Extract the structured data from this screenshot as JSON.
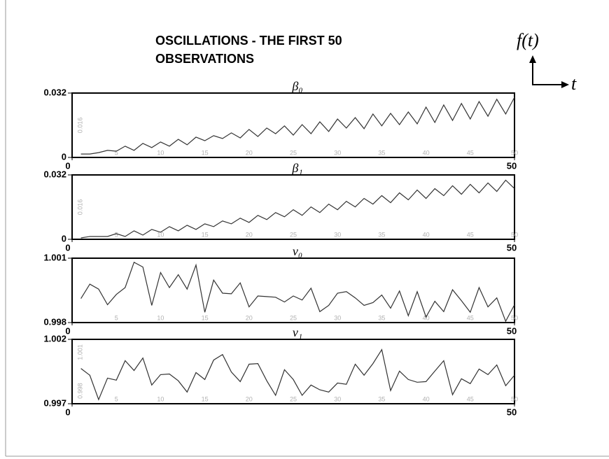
{
  "title_lines": [
    "OSCILLATIONS - THE FIRST 50",
    "OBSERVATIONS"
  ],
  "axis_key": {
    "y_label": "f(t)",
    "x_label": "t"
  },
  "chart_data": [
    {
      "type": "line",
      "title": "β₀",
      "color": "#333333",
      "x": [
        1,
        2,
        3,
        4,
        5,
        6,
        7,
        8,
        9,
        10,
        11,
        12,
        13,
        14,
        15,
        16,
        17,
        18,
        19,
        20,
        21,
        22,
        23,
        24,
        25,
        26,
        27,
        28,
        29,
        30,
        31,
        32,
        33,
        34,
        35,
        36,
        37,
        38,
        39,
        40,
        41,
        42,
        43,
        44,
        45,
        46,
        47,
        48,
        49,
        50
      ],
      "values": [
        0.0017,
        0.0017,
        0.0024,
        0.0035,
        0.0031,
        0.0056,
        0.0035,
        0.007,
        0.0049,
        0.0077,
        0.0056,
        0.009,
        0.0063,
        0.0101,
        0.0083,
        0.0108,
        0.0094,
        0.0122,
        0.0097,
        0.0139,
        0.0104,
        0.0146,
        0.0118,
        0.0157,
        0.0111,
        0.0163,
        0.0118,
        0.0177,
        0.0129,
        0.0191,
        0.0146,
        0.0198,
        0.0143,
        0.0216,
        0.0157,
        0.0219,
        0.0163,
        0.0226,
        0.0167,
        0.025,
        0.0174,
        0.0261,
        0.0184,
        0.0268,
        0.0191,
        0.0278,
        0.0205,
        0.0289,
        0.0216,
        0.0299
      ],
      "xlim": [
        0,
        50
      ],
      "xticks": [
        0,
        50
      ],
      "xticks_minor": [
        5,
        10,
        15,
        20,
        25,
        30,
        35,
        40,
        45,
        50
      ],
      "ylim": [
        0,
        0.032
      ],
      "yticks": [
        0,
        0.032
      ],
      "yticks_minor": [
        0.016
      ]
    },
    {
      "type": "line",
      "title": "β₁",
      "color": "#333333",
      "x": [
        1,
        2,
        3,
        4,
        5,
        6,
        7,
        8,
        9,
        10,
        11,
        12,
        13,
        14,
        15,
        16,
        17,
        18,
        19,
        20,
        21,
        22,
        23,
        24,
        25,
        26,
        27,
        28,
        29,
        30,
        31,
        32,
        33,
        34,
        35,
        36,
        37,
        38,
        39,
        40,
        41,
        42,
        43,
        44,
        45,
        46,
        47,
        48,
        49,
        50
      ],
      "values": [
        0.0007,
        0.0014,
        0.0014,
        0.0014,
        0.0028,
        0.0014,
        0.0042,
        0.0021,
        0.0049,
        0.0035,
        0.0063,
        0.0042,
        0.007,
        0.0049,
        0.0077,
        0.0063,
        0.0091,
        0.0077,
        0.0105,
        0.0084,
        0.0119,
        0.0098,
        0.0133,
        0.0112,
        0.0147,
        0.0119,
        0.0161,
        0.0133,
        0.0175,
        0.0147,
        0.0189,
        0.0161,
        0.0203,
        0.0175,
        0.0217,
        0.0182,
        0.0231,
        0.0196,
        0.0245,
        0.0203,
        0.0252,
        0.0217,
        0.0266,
        0.0224,
        0.0273,
        0.0231,
        0.028,
        0.0238,
        0.0294,
        0.0252
      ],
      "xlim": [
        0,
        50
      ],
      "xticks": [
        0,
        50
      ],
      "xticks_minor": [
        5,
        10,
        15,
        20,
        25,
        30,
        35,
        40,
        45,
        50
      ],
      "ylim": [
        0,
        0.032
      ],
      "yticks": [
        0,
        0.032
      ],
      "yticks_minor": [
        0.016
      ]
    },
    {
      "type": "line",
      "title": "ν₀",
      "color": "#333333",
      "x": [
        1,
        2,
        3,
        4,
        5,
        6,
        7,
        8,
        9,
        10,
        11,
        12,
        13,
        14,
        15,
        16,
        17,
        18,
        19,
        20,
        21,
        22,
        23,
        24,
        25,
        26,
        27,
        28,
        29,
        30,
        31,
        32,
        33,
        34,
        35,
        36,
        37,
        38,
        39,
        40,
        41,
        42,
        43,
        44,
        45,
        46,
        47,
        48,
        49,
        50
      ],
      "values": [
        0.99912,
        0.99979,
        0.99956,
        0.99883,
        0.99931,
        0.99963,
        1.00081,
        1.00059,
        0.9988,
        1.00033,
        0.99963,
        1.00023,
        0.99956,
        1.00068,
        0.99848,
        0.99998,
        0.99937,
        0.99934,
        0.99985,
        0.99873,
        0.99924,
        0.99921,
        0.99918,
        0.99896,
        0.99924,
        0.99905,
        0.9996,
        0.99851,
        0.9988,
        0.99937,
        0.99944,
        0.99915,
        0.9988,
        0.99893,
        0.99928,
        0.99867,
        0.99947,
        0.99832,
        0.99944,
        0.99826,
        0.99899,
        0.99851,
        0.99953,
        0.99902,
        0.99848,
        0.99963,
        0.99873,
        0.99915,
        0.99806,
        0.99883
      ],
      "xlim": [
        0,
        50
      ],
      "xticks": [
        0,
        50
      ],
      "xticks_minor": [
        5,
        10,
        15,
        20,
        25,
        30,
        35,
        40,
        45,
        50
      ],
      "ylim": [
        0.998,
        1.001
      ],
      "yticks": [
        0.998,
        1.001
      ],
      "yticks_minor": []
    },
    {
      "type": "line",
      "title": "ν₁",
      "color": "#333333",
      "x": [
        1,
        2,
        3,
        4,
        5,
        6,
        7,
        8,
        9,
        10,
        11,
        12,
        13,
        14,
        15,
        16,
        17,
        18,
        19,
        20,
        21,
        22,
        23,
        24,
        25,
        26,
        27,
        28,
        29,
        30,
        31,
        32,
        33,
        34,
        35,
        36,
        37,
        38,
        39,
        40,
        41,
        42,
        43,
        44,
        45,
        46,
        47,
        48,
        49,
        50
      ],
      "values": [
        0.99974,
        0.99921,
        0.99732,
        0.99899,
        0.99883,
        1.00034,
        0.99958,
        1.00055,
        0.99845,
        0.99926,
        0.99931,
        0.99878,
        0.99791,
        0.99942,
        0.99888,
        1.00039,
        1.00082,
        0.99947,
        0.99872,
        1.00007,
        1.00012,
        0.99878,
        0.99765,
        0.99964,
        0.99888,
        0.99765,
        0.99845,
        0.99808,
        0.99791,
        0.99861,
        0.99851,
        1.00007,
        0.99921,
        1.00012,
        1.0012,
        0.99802,
        0.99953,
        0.99888,
        0.99867,
        0.99872,
        0.99953,
        1.00034,
        0.9977,
        0.99894,
        0.99856,
        0.99969,
        0.99926,
        1.00001,
        0.9984,
        0.99921
      ],
      "xlim": [
        0,
        50
      ],
      "xticks": [
        0,
        50
      ],
      "xticks_minor": [
        5,
        10,
        15,
        20,
        25,
        30,
        35,
        40,
        45,
        50
      ],
      "ylim": [
        0.997,
        1.002
      ],
      "yticks": [
        0.997,
        1.002
      ],
      "yticks_minor": [
        0.998,
        1.001
      ]
    }
  ]
}
